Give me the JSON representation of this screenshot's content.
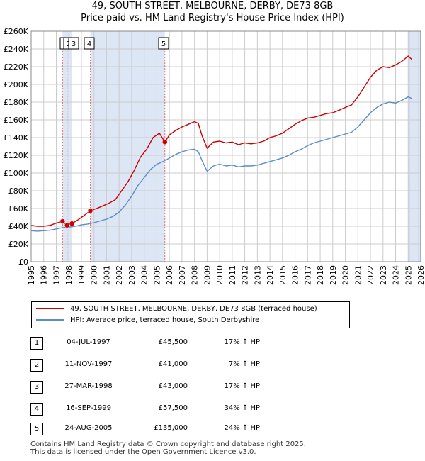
{
  "title_line1": "49, SOUTH STREET, MELBOURNE, DERBY, DE73 8GB",
  "title_line2": "Price paid vs. HM Land Registry's House Price Index (HPI)",
  "colors": {
    "property": "#cc0000",
    "hpi": "#5b8cc8",
    "shade": "#dde6f4",
    "grid": "#cccccc",
    "marker_line": "#e07070"
  },
  "legend": {
    "property_label": "49, SOUTH STREET, MELBOURNE, DERBY, DE73 8GB (terraced house)",
    "hpi_label": "HPI: Average price, terraced house, South Derbyshire"
  },
  "chart_data": {
    "type": "line",
    "title": "Price paid vs. HM Land Registry's House Price Index (HPI)",
    "xlabel": "",
    "ylabel": "",
    "xlim": [
      1995,
      2026
    ],
    "ylim": [
      0,
      260000
    ],
    "y_ticks": [
      0,
      20000,
      40000,
      60000,
      80000,
      100000,
      120000,
      140000,
      160000,
      180000,
      200000,
      220000,
      240000,
      260000
    ],
    "y_tick_labels": [
      "£0",
      "£20K",
      "£40K",
      "£60K",
      "£80K",
      "£100K",
      "£120K",
      "£140K",
      "£160K",
      "£180K",
      "£200K",
      "£220K",
      "£240K",
      "£260K"
    ],
    "x_ticks": [
      1995,
      1996,
      1997,
      1998,
      1999,
      2000,
      2001,
      2002,
      2003,
      2004,
      2005,
      2006,
      2007,
      2008,
      2009,
      2010,
      2011,
      2012,
      2013,
      2014,
      2015,
      2016,
      2017,
      2018,
      2019,
      2020,
      2021,
      2022,
      2023,
      2024,
      2025,
      2026
    ],
    "x_tick_labels": [
      "1995",
      "1996",
      "1997",
      "1998",
      "1999",
      "2000",
      "2001",
      "2002",
      "2003",
      "2004",
      "2005",
      "2006",
      "2007",
      "2008",
      "2009",
      "2010",
      "2011",
      "2012",
      "2013",
      "2014",
      "2015",
      "2016",
      "2017",
      "2018",
      "2019",
      "2020",
      "2021",
      "2022",
      "2023",
      "2024",
      "2025",
      "2026"
    ],
    "grid": true,
    "series": [
      {
        "name": "49, SOUTH STREET, MELBOURNE, DERBY, DE73 8GB (terraced house)",
        "x": [
          1995,
          1995.5,
          1996,
          1996.5,
          1997,
          1997.5,
          1997.86,
          1998.24,
          1998.7,
          1999.2,
          1999.71,
          2000.2,
          2000.7,
          2001.2,
          2001.7,
          2002.2,
          2002.7,
          2003.2,
          2003.7,
          2004.2,
          2004.7,
          2005.2,
          2005.64,
          2006,
          2006.5,
          2007,
          2007.5,
          2008,
          2008.3,
          2008.6,
          2009,
          2009.5,
          2010,
          2010.5,
          2011,
          2011.5,
          2012,
          2012.5,
          2013,
          2013.5,
          2014,
          2014.5,
          2015,
          2015.5,
          2016,
          2016.5,
          2017,
          2017.5,
          2018,
          2018.5,
          2019,
          2019.5,
          2020,
          2020.5,
          2021,
          2021.5,
          2022,
          2022.5,
          2023,
          2023.5,
          2024,
          2024.5,
          2025,
          2025.3
        ],
        "values": [
          41000,
          40000,
          40000,
          41000,
          43500,
          45500,
          41000,
          43000,
          47000,
          52000,
          57500,
          60000,
          63000,
          66000,
          70000,
          80000,
          90000,
          103000,
          118000,
          127000,
          140000,
          145000,
          135000,
          143000,
          148000,
          152000,
          155000,
          158000,
          156000,
          142000,
          128000,
          135000,
          136000,
          134000,
          135000,
          132000,
          134000,
          133000,
          134000,
          136000,
          140000,
          142000,
          145000,
          150000,
          155000,
          159000,
          162000,
          163000,
          165000,
          167000,
          168000,
          171000,
          174000,
          177000,
          186000,
          197000,
          208000,
          216000,
          220000,
          219000,
          222000,
          226000,
          232000,
          228000
        ]
      },
      {
        "name": "HPI: Average price, terraced house, South Derbyshire",
        "x": [
          1995,
          1995.5,
          1996,
          1996.5,
          1997,
          1997.5,
          1998,
          1998.5,
          1999,
          1999.5,
          2000,
          2000.5,
          2001,
          2001.5,
          2002,
          2002.5,
          2003,
          2003.5,
          2004,
          2004.5,
          2005,
          2005.5,
          2006,
          2006.5,
          2007,
          2007.5,
          2008,
          2008.3,
          2008.6,
          2009,
          2009.5,
          2010,
          2010.5,
          2011,
          2011.5,
          2012,
          2012.5,
          2013,
          2013.5,
          2014,
          2014.5,
          2015,
          2015.5,
          2016,
          2016.5,
          2017,
          2017.5,
          2018,
          2018.5,
          2019,
          2019.5,
          2020,
          2020.5,
          2021,
          2021.5,
          2022,
          2022.5,
          2023,
          2023.5,
          2024,
          2024.5,
          2025,
          2025.3
        ],
        "values": [
          35000,
          34500,
          35000,
          35500,
          37000,
          38500,
          39000,
          40000,
          41500,
          42500,
          44000,
          46000,
          48000,
          51000,
          56000,
          64000,
          74000,
          86000,
          95000,
          104000,
          110000,
          113000,
          117000,
          121000,
          124000,
          126000,
          127000,
          124000,
          114000,
          102000,
          108000,
          110000,
          108000,
          109000,
          107000,
          108000,
          108000,
          109000,
          111000,
          113000,
          115000,
          117000,
          120000,
          124000,
          127000,
          131000,
          134000,
          136000,
          138000,
          140000,
          142000,
          144000,
          146000,
          152000,
          160000,
          168000,
          174000,
          178000,
          180000,
          179000,
          182000,
          186000,
          184000
        ]
      }
    ],
    "sales": [
      {
        "num": "1",
        "x": 1997.5,
        "value": 45500
      },
      {
        "num": "2",
        "x": 1997.86,
        "value": 41000
      },
      {
        "num": "3",
        "x": 1998.24,
        "value": 43000
      },
      {
        "num": "4",
        "x": 1999.71,
        "value": 57500
      },
      {
        "num": "5",
        "x": 2005.64,
        "value": 135000
      }
    ],
    "shaded_ranges": [
      [
        1997.5,
        1998.24
      ],
      [
        1999.71,
        2005.64
      ],
      [
        2025.0,
        2026
      ]
    ]
  },
  "table": [
    {
      "num": "1",
      "date": "04-JUL-1997",
      "price": "£45,500",
      "hpi": "17% ↑ HPI"
    },
    {
      "num": "2",
      "date": "11-NOV-1997",
      "price": "£41,000",
      "hpi": "7% ↑ HPI"
    },
    {
      "num": "3",
      "date": "27-MAR-1998",
      "price": "£43,000",
      "hpi": "17% ↑ HPI"
    },
    {
      "num": "4",
      "date": "16-SEP-1999",
      "price": "£57,500",
      "hpi": "34% ↑ HPI"
    },
    {
      "num": "5",
      "date": "24-AUG-2005",
      "price": "£135,000",
      "hpi": "24% ↑ HPI"
    }
  ],
  "footer_line1": "Contains HM Land Registry data © Crown copyright and database right 2025.",
  "footer_line2": "This data is licensed under the Open Government Licence v3.0."
}
